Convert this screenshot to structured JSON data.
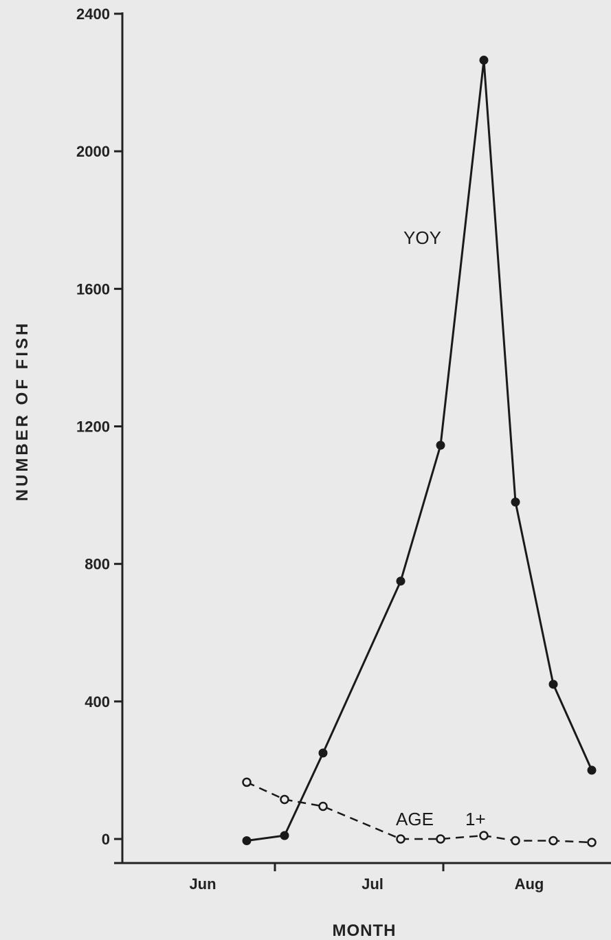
{
  "chart_data": {
    "type": "line",
    "xlabel": "MONTH",
    "ylabel": "NUMBER OF FISH",
    "ylim": [
      0,
      2400
    ],
    "yticks": [
      "0",
      "400",
      "800",
      "1200",
      "1600",
      "2000",
      "2400"
    ],
    "x_categories": [
      "Jun",
      "Jul",
      "Aug"
    ],
    "grid": false,
    "legend": "none (series labeled inline)",
    "series": [
      {
        "name": "YOY",
        "label_text": "YOY",
        "style": "solid, filled circles",
        "x": [
          1,
          2,
          3,
          4,
          5,
          6,
          7,
          8,
          9
        ],
        "values": [
          -5,
          10,
          250,
          750,
          1145,
          2265,
          980,
          450,
          200
        ]
      },
      {
        "name": "AGE 1+",
        "label_text_parts": [
          "AGE",
          "1+"
        ],
        "style": "dashed, open circles",
        "x": [
          1,
          2,
          3,
          4,
          5,
          6,
          7,
          8,
          9
        ],
        "values": [
          165,
          115,
          95,
          0,
          0,
          10,
          -5,
          -5,
          -10
        ]
      }
    ]
  }
}
